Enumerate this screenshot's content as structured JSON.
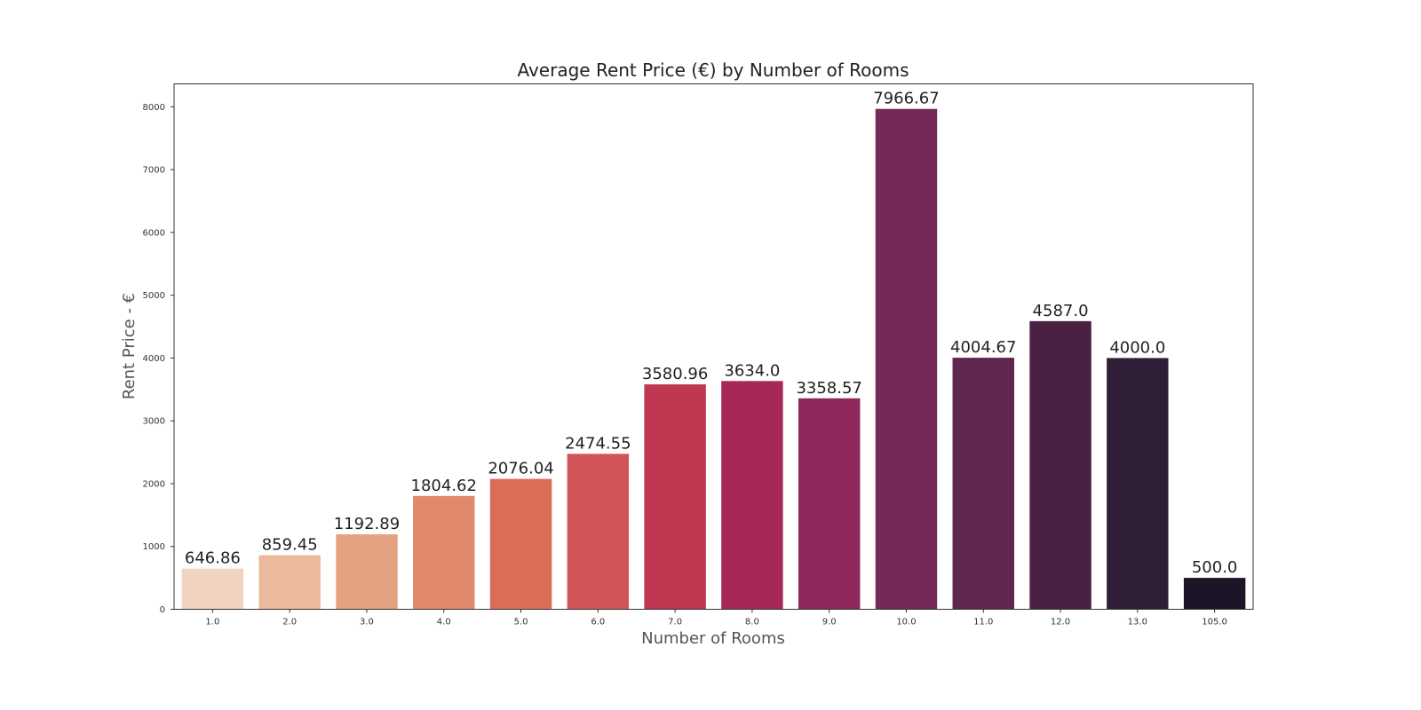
{
  "chart_data": {
    "type": "bar",
    "title": "Average Rent Price (€) by Number of Rooms",
    "xlabel": "Number of Rooms",
    "ylabel": "Rent Price - €",
    "categories": [
      "1.0",
      "2.0",
      "3.0",
      "4.0",
      "5.0",
      "6.0",
      "7.0",
      "8.0",
      "9.0",
      "10.0",
      "11.0",
      "12.0",
      "13.0",
      "105.0"
    ],
    "values": [
      646.86,
      859.45,
      1192.89,
      1804.62,
      2076.04,
      2474.55,
      3580.96,
      3634.0,
      3358.57,
      7966.67,
      4004.67,
      4587.0,
      4000.0,
      500.0
    ],
    "data_labels": [
      "646.86",
      "859.45",
      "1192.89",
      "1804.62",
      "2076.04",
      "2474.55",
      "3580.96",
      "3634.0",
      "3358.57",
      "7966.67",
      "4004.67",
      "4587.0",
      "4000.0",
      "500.0"
    ],
    "ylim": [
      0,
      8365
    ],
    "yticks": [
      0,
      1000,
      2000,
      3000,
      4000,
      5000,
      6000,
      7000,
      8000
    ],
    "colors": [
      "#f0d3c0",
      "#ebb99c",
      "#e4a283",
      "#e0896d",
      "#db6d58",
      "#d15558",
      "#bf3751",
      "#a62856",
      "#8e285a",
      "#742958",
      "#5f264f",
      "#4a2142",
      "#301e37",
      "#1c1528"
    ],
    "grid": false,
    "legend": "none"
  }
}
